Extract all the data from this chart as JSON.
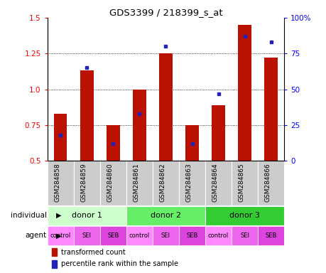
{
  "title": "GDS3399 / 218399_s_at",
  "samples": [
    "GSM284858",
    "GSM284859",
    "GSM284860",
    "GSM284861",
    "GSM284862",
    "GSM284863",
    "GSM284864",
    "GSM284865",
    "GSM284866"
  ],
  "transformed_count": [
    0.83,
    1.13,
    0.75,
    1.0,
    1.25,
    0.75,
    0.89,
    1.45,
    1.22
  ],
  "percentile_rank": [
    18,
    65,
    12,
    33,
    80,
    12,
    47,
    87,
    83
  ],
  "ylim_left": [
    0.5,
    1.5
  ],
  "ylim_right": [
    0,
    100
  ],
  "yticks_left": [
    0.5,
    0.75,
    1.0,
    1.25,
    1.5
  ],
  "yticks_right": [
    0,
    25,
    50,
    75,
    100
  ],
  "yticklabels_right": [
    "0",
    "25",
    "50",
    "75",
    "100%"
  ],
  "bar_color": "#bb1100",
  "dot_color": "#2222bb",
  "donor_ranges": [
    [
      0,
      2,
      "donor 1",
      "#ccffcc"
    ],
    [
      3,
      5,
      "donor 2",
      "#66ee66"
    ],
    [
      6,
      8,
      "donor 3",
      "#33cc33"
    ]
  ],
  "agent_labels": [
    "control",
    "SEI",
    "SEB",
    "control",
    "SEI",
    "SEB",
    "control",
    "SEI",
    "SEB"
  ],
  "agent_color_map": {
    "control": "#ff88ff",
    "SEI": "#ee66ee",
    "SEB": "#dd44dd"
  },
  "sample_bg_color": "#cccccc",
  "legend_bar_label": "transformed count",
  "legend_dot_label": "percentile rank within the sample",
  "base": 0.5,
  "bar_width": 0.5
}
